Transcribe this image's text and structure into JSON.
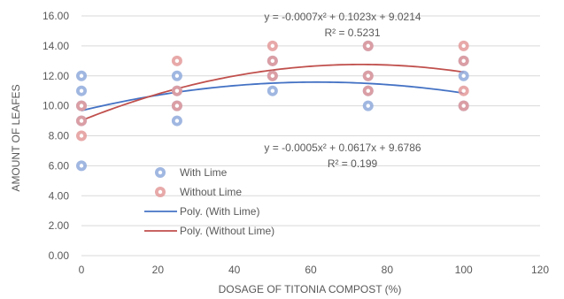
{
  "chart_data": {
    "type": "scatter",
    "xlabel": "DOSAGE OF TITONIA COMPOST (%)",
    "ylabel": "AMOUNT OF LEAFES",
    "xlim": [
      0,
      120
    ],
    "ylim": [
      0,
      16
    ],
    "x_ticks": [
      "0",
      "20",
      "40",
      "60",
      "80",
      "100",
      "120"
    ],
    "y_ticks": [
      "0.00",
      "2.00",
      "4.00",
      "6.00",
      "8.00",
      "10.00",
      "12.00",
      "14.00",
      "16.00"
    ],
    "grid": "horizontal",
    "legend_position": "center-left",
    "series": [
      {
        "name": "With Lime",
        "color": "#8FAADC",
        "points": [
          {
            "x": 0,
            "y": 12
          },
          {
            "x": 0,
            "y": 11
          },
          {
            "x": 0,
            "y": 10
          },
          {
            "x": 0,
            "y": 9
          },
          {
            "x": 0,
            "y": 6
          },
          {
            "x": 25,
            "y": 12
          },
          {
            "x": 25,
            "y": 11
          },
          {
            "x": 25,
            "y": 10
          },
          {
            "x": 25,
            "y": 9
          },
          {
            "x": 50,
            "y": 13
          },
          {
            "x": 50,
            "y": 12
          },
          {
            "x": 50,
            "y": 11
          },
          {
            "x": 75,
            "y": 14
          },
          {
            "x": 75,
            "y": 12
          },
          {
            "x": 75,
            "y": 11
          },
          {
            "x": 75,
            "y": 10
          },
          {
            "x": 100,
            "y": 13
          },
          {
            "x": 100,
            "y": 12
          },
          {
            "x": 100,
            "y": 10
          }
        ]
      },
      {
        "name": "Without Lime",
        "color": "#E49A9A",
        "points": [
          {
            "x": 0,
            "y": 10
          },
          {
            "x": 0,
            "y": 9
          },
          {
            "x": 0,
            "y": 8
          },
          {
            "x": 25,
            "y": 13
          },
          {
            "x": 25,
            "y": 11
          },
          {
            "x": 25,
            "y": 10
          },
          {
            "x": 50,
            "y": 14
          },
          {
            "x": 50,
            "y": 13
          },
          {
            "x": 50,
            "y": 12
          },
          {
            "x": 75,
            "y": 14
          },
          {
            "x": 75,
            "y": 12
          },
          {
            "x": 75,
            "y": 11
          },
          {
            "x": 100,
            "y": 14
          },
          {
            "x": 100,
            "y": 13
          },
          {
            "x": 100,
            "y": 11
          },
          {
            "x": 100,
            "y": 10
          }
        ]
      }
    ],
    "trendlines": [
      {
        "name": "Poly. (With Lime)",
        "color": "#4472C4",
        "coefficients": [
          -0.0005,
          0.0617,
          9.6786
        ],
        "x_range": [
          0,
          100
        ],
        "equation_label": "y = -0.0005x² + 0.0617x + 9.6786",
        "r2_label": "R² = 0.199"
      },
      {
        "name": "Poly. (Without Lime)",
        "color": "#C0504D",
        "coefficients": [
          -0.0007,
          0.1023,
          9.0214
        ],
        "x_range": [
          0,
          100
        ],
        "equation_label": "y = -0.0007x² + 0.1023x + 9.0214",
        "r2_label": "R² = 0.5231"
      }
    ],
    "legend": [
      {
        "label": "With Lime",
        "kind": "marker",
        "color": "#8FAADC"
      },
      {
        "label": "Without Lime",
        "kind": "marker",
        "color": "#E49A9A"
      },
      {
        "label": "Poly. (With Lime)",
        "kind": "line",
        "color": "#4472C4"
      },
      {
        "label": "Poly. (Without Lime)",
        "kind": "line",
        "color": "#C0504D"
      }
    ],
    "colors": {
      "grid": "#D9D9D9",
      "text": "#595959"
    }
  }
}
